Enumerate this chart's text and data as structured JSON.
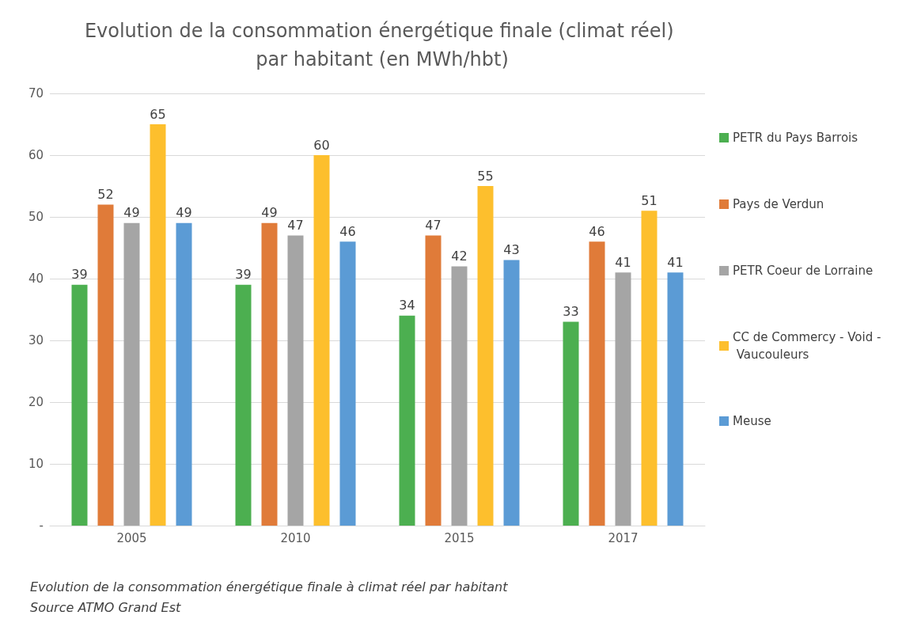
{
  "chart_data": {
    "type": "bar",
    "title": "Evolution de la consommation énergétique finale (climat réel) par habitant (en MWh/hbt)",
    "categories": [
      "2005",
      "2010",
      "2015",
      "2017"
    ],
    "series": [
      {
        "name": "PETR du Pays Barrois",
        "color": "#4caf50",
        "values": [
          39,
          39,
          34,
          33
        ]
      },
      {
        "name": "Pays de Verdun",
        "color": "#e07b39",
        "values": [
          52,
          49,
          47,
          46
        ]
      },
      {
        "name": "PETR Coeur de Lorraine",
        "color": "#a5a5a5",
        "values": [
          49,
          47,
          42,
          41
        ]
      },
      {
        "name": "CC de Commercy - Void - Vaucouleurs",
        "color": "#fdbf2d",
        "values": [
          65,
          60,
          55,
          51
        ]
      },
      {
        "name": "Meuse",
        "color": "#5b9bd5",
        "values": [
          49,
          46,
          43,
          41
        ]
      }
    ],
    "ylim": [
      0,
      70
    ],
    "yticks": [
      {
        "value": 0,
        "label": "-"
      },
      10,
      20,
      30,
      40,
      50,
      60,
      70
    ],
    "grid": "y",
    "legend": "right",
    "data_labels": true,
    "annotations": [
      "Evolution de la consommation énergétique finale à climat réel par habitant",
      "Source ATMO Grand Est"
    ]
  }
}
